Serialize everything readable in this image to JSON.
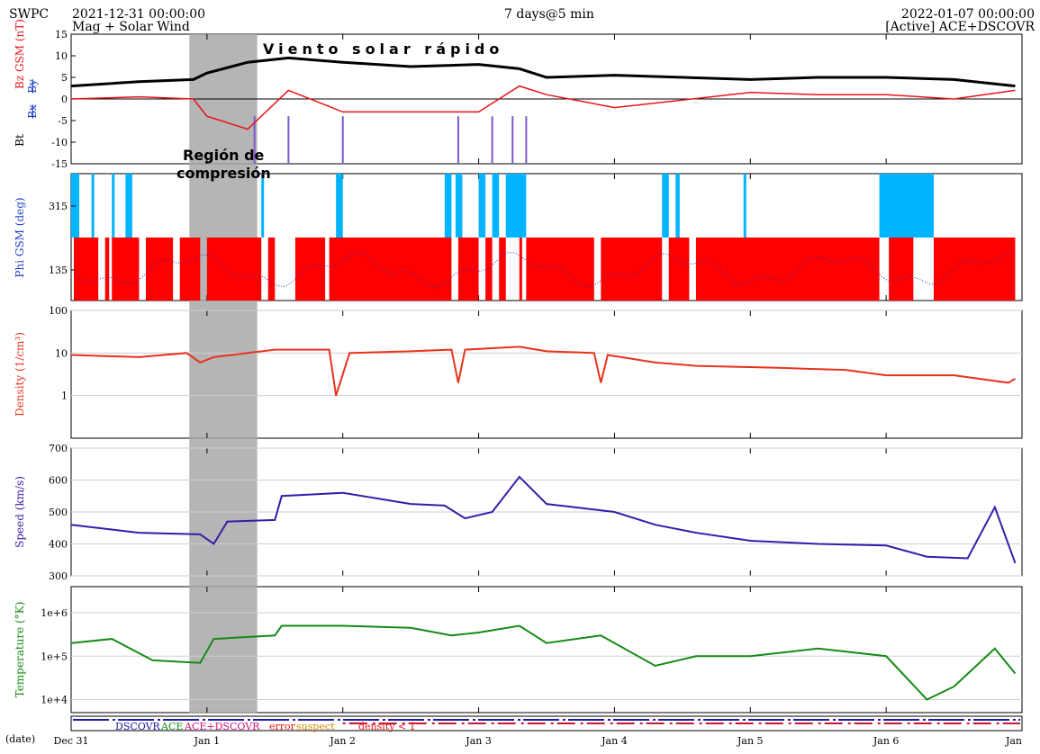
{
  "header": {
    "agency": "SWPC",
    "start": "2021-12-31 00:00:00",
    "subtitle": "Mag + Solar Wind",
    "span": "7 days@5 min",
    "end": "2022-01-07 00:00:00",
    "source": "[Active] ACE+DSCOVR"
  },
  "annotations": {
    "fast_wind": "Viento solar rápido",
    "compression_line1": "Región de",
    "compression_line2": "compresión"
  },
  "legend": {
    "dscovr": "DSCOVR",
    "ace": "ACE",
    "combined": "ACE+DSCOVR",
    "error": "error",
    "suspect": "suspect",
    "density_low": "density < 1",
    "date_label": "(date)"
  },
  "colors": {
    "bt": "#000000",
    "bz": "#e8141a",
    "bx": "#1f3fc8",
    "by": "#1f3fc8",
    "phi_red": "#ff0000",
    "phi_blue": "#00b4ff",
    "phi_points": "#2a2aaa",
    "density": "#e8321a",
    "speed": "#3a1aaa",
    "temperature": "#168a16",
    "shade": "#a8a8a8"
  },
  "chart_data": [
    {
      "type": "line",
      "panel": "mag",
      "ylabel_parts": [
        "Bt",
        "Bx",
        "By",
        "Bz GSM (nT)"
      ],
      "ylim": [
        -15,
        15
      ],
      "yticks": [
        -15,
        -10,
        -5,
        0,
        5,
        10,
        15
      ],
      "x": [
        0,
        0.5,
        0.9,
        1.0,
        1.3,
        1.6,
        2.0,
        2.5,
        3.0,
        3.3,
        3.5,
        4.0,
        5.0,
        5.5,
        6.0,
        6.5,
        6.95
      ],
      "series": [
        {
          "name": "Bt",
          "values": [
            3,
            4,
            4.5,
            6,
            8.5,
            9.5,
            8.5,
            7.5,
            8,
            7,
            5,
            5.5,
            4.5,
            5,
            5,
            4.5,
            3
          ]
        },
        {
          "name": "Bz",
          "values": [
            0,
            0.5,
            0,
            -4,
            -7,
            2,
            -3,
            -3,
            -3,
            3,
            1,
            -2,
            1.5,
            1,
            1,
            0,
            2
          ]
        }
      ],
      "spikes_x": [
        1.35,
        1.6,
        2.0,
        2.85,
        3.1,
        3.25,
        3.35
      ]
    },
    {
      "type": "scatter",
      "panel": "phi",
      "ylabel": "Phi GSM (deg)",
      "ytick_labels": [
        "315",
        "135"
      ],
      "red_intervals": [
        [
          0.02,
          0.2
        ],
        [
          0.25,
          0.28
        ],
        [
          0.3,
          0.5
        ],
        [
          0.55,
          0.75
        ],
        [
          0.8,
          0.95
        ],
        [
          1.0,
          1.4
        ],
        [
          1.45,
          1.5
        ],
        [
          1.65,
          1.87
        ],
        [
          1.9,
          2.8
        ],
        [
          2.85,
          3.0
        ],
        [
          3.05,
          3.1
        ],
        [
          3.15,
          3.2
        ],
        [
          3.3,
          3.32
        ],
        [
          3.35,
          3.85
        ],
        [
          3.9,
          4.35
        ],
        [
          4.4,
          4.55
        ],
        [
          4.6,
          5.95
        ],
        [
          6.02,
          6.2
        ],
        [
          6.35,
          6.95
        ]
      ],
      "blue_intervals": [
        [
          0.0,
          0.06
        ],
        [
          0.15,
          0.17
        ],
        [
          0.3,
          0.32
        ],
        [
          0.4,
          0.45
        ],
        [
          1.4,
          1.42
        ],
        [
          1.95,
          2.0
        ],
        [
          2.75,
          2.8
        ],
        [
          2.83,
          2.88
        ],
        [
          3.0,
          3.05
        ],
        [
          3.1,
          3.15
        ],
        [
          3.2,
          3.35
        ],
        [
          4.35,
          4.4
        ],
        [
          4.45,
          4.48
        ],
        [
          4.95,
          4.97
        ],
        [
          5.95,
          6.35
        ]
      ]
    },
    {
      "type": "line",
      "panel": "density",
      "ylabel": "Density (1/cm³)",
      "scale": "log",
      "ylim": [
        0.1,
        100
      ],
      "ytick_labels": [
        "100",
        "10",
        "1"
      ],
      "x": [
        0,
        0.5,
        0.85,
        0.95,
        1.05,
        1.5,
        1.9,
        1.95,
        2.05,
        2.5,
        2.8,
        2.85,
        2.9,
        3.3,
        3.5,
        3.85,
        3.9,
        3.95,
        4.3,
        4.6,
        5.2,
        5.7,
        6.0,
        6.5,
        6.9,
        6.95
      ],
      "values": [
        9,
        8,
        10,
        6,
        8,
        12,
        12,
        1,
        10,
        11,
        12,
        2,
        12,
        14,
        11,
        10,
        2,
        9,
        6,
        5,
        4.5,
        4,
        3,
        3,
        2,
        2.5
      ]
    },
    {
      "type": "line",
      "panel": "speed",
      "ylabel": "Speed (km/s)",
      "ylim": [
        300,
        700
      ],
      "yticks": [
        300,
        400,
        500,
        600,
        700
      ],
      "x": [
        0,
        0.5,
        0.95,
        1.05,
        1.15,
        1.5,
        1.55,
        2.0,
        2.5,
        2.75,
        2.9,
        3.1,
        3.3,
        3.5,
        4.0,
        4.3,
        4.6,
        5.0,
        5.5,
        6.0,
        6.3,
        6.6,
        6.8,
        6.95
      ],
      "values": [
        460,
        435,
        430,
        400,
        470,
        475,
        550,
        560,
        525,
        520,
        480,
        500,
        610,
        525,
        500,
        460,
        435,
        410,
        400,
        395,
        360,
        355,
        515,
        340
      ]
    },
    {
      "type": "line",
      "panel": "temperature",
      "ylabel": "Temperature (°K)",
      "scale": "log",
      "ylim": [
        5000,
        4000000
      ],
      "ytick_labels": [
        "1e+6",
        "1e+5",
        "1e+4"
      ],
      "x": [
        0,
        0.3,
        0.6,
        0.95,
        1.05,
        1.5,
        1.55,
        2.0,
        2.5,
        2.8,
        3.0,
        3.3,
        3.5,
        3.9,
        4.3,
        4.6,
        5.0,
        5.5,
        6.0,
        6.3,
        6.5,
        6.8,
        6.95
      ],
      "values": [
        200000,
        250000,
        80000,
        70000,
        250000,
        300000,
        500000,
        500000,
        450000,
        300000,
        350000,
        500000,
        200000,
        300000,
        60000,
        100000,
        100000,
        150000,
        100000,
        10000,
        20000,
        150000,
        40000
      ]
    }
  ],
  "xaxis": {
    "labels": [
      "Dec 31",
      "Jan 1",
      "Jan 2",
      "Jan 3",
      "Jan 4",
      "Jan 5",
      "Jan 6",
      "Jan"
    ]
  },
  "shaded_region": {
    "x_start": 0.87,
    "x_end": 1.37
  },
  "fast_wind_span": {
    "x_start": 0.87,
    "x_end": 3.4
  }
}
